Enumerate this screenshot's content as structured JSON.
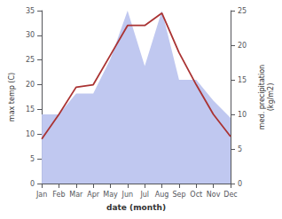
{
  "chart_data": {
    "type": "line",
    "categories": [
      "Jan",
      "Feb",
      "Mar",
      "Apr",
      "May",
      "Jun",
      "Jul",
      "Aug",
      "Sep",
      "Oct",
      "Nov",
      "Dec"
    ],
    "xlabel": "date (month)",
    "ylabel": "max temp (C)",
    "y2label": "med. precipitation\n(kg/m2)",
    "series": [
      {
        "type": "area",
        "axis": "y2",
        "color": "#c0c8f0",
        "values": [
          10,
          10,
          13,
          13,
          18,
          25,
          17,
          25,
          15,
          15,
          12,
          9.5
        ]
      },
      {
        "type": "line",
        "axis": "y",
        "color": "#aa3333",
        "values": [
          9,
          14,
          19.5,
          20,
          26,
          32,
          32,
          34.5,
          26.5,
          20,
          14,
          9.5
        ]
      }
    ],
    "ylim": [
      0,
      35
    ],
    "yticks": [
      0,
      5,
      10,
      15,
      20,
      25,
      30,
      35
    ],
    "y2lim": [
      0,
      25
    ],
    "y2ticks": [
      0,
      5,
      10,
      15,
      20,
      25
    ],
    "grid": false
  }
}
